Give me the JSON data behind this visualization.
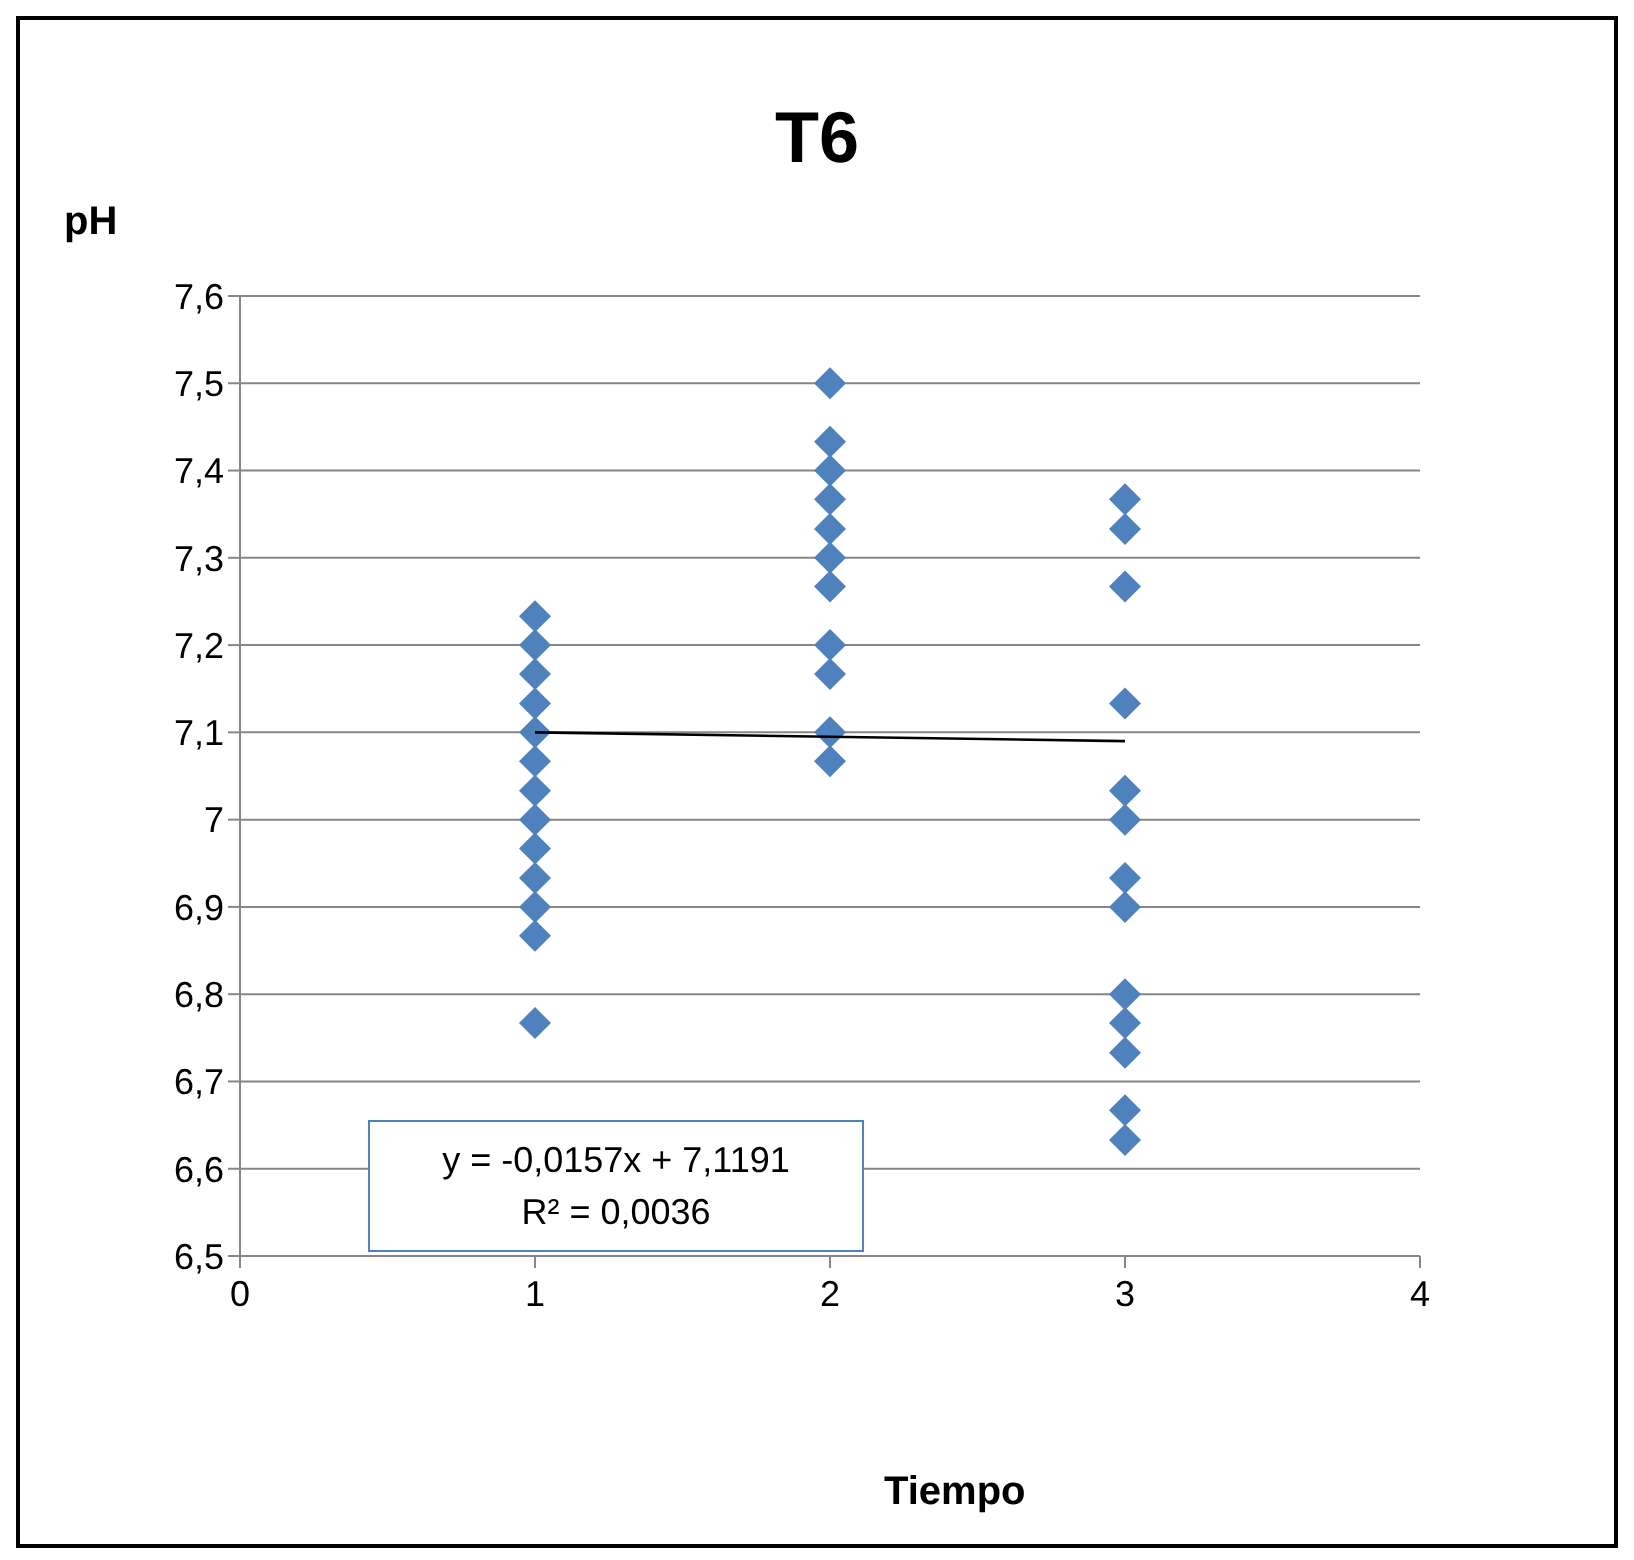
{
  "chart_data": {
    "type": "scatter",
    "title": "T6",
    "xlabel": "Tiempo",
    "ylabel": "pH",
    "xlim": [
      0,
      4
    ],
    "xticks": [
      0,
      1,
      2,
      3,
      4
    ],
    "ylim": [
      6.5,
      7.6
    ],
    "yticks": [
      {
        "value": 6.5,
        "label": "6,5"
      },
      {
        "value": 6.6,
        "label": "6,6"
      },
      {
        "value": 6.7,
        "label": "6,7"
      },
      {
        "value": 6.8,
        "label": "6,8"
      },
      {
        "value": 6.9,
        "label": "6,9"
      },
      {
        "value": 7.0,
        "label": "7"
      },
      {
        "value": 7.1,
        "label": "7,1"
      },
      {
        "value": 7.2,
        "label": "7,2"
      },
      {
        "value": 7.3,
        "label": "7,3"
      },
      {
        "value": 7.4,
        "label": "7,4"
      },
      {
        "value": 7.5,
        "label": "7,5"
      },
      {
        "value": 7.6,
        "label": "7,6"
      }
    ],
    "grid": "y",
    "legend": false,
    "marker": "diamond",
    "series": [
      {
        "color": "#4f81bd",
        "x": [
          1,
          1,
          1,
          1,
          1,
          1,
          1,
          1,
          1,
          1,
          1,
          1,
          1,
          2,
          2,
          2,
          2,
          2,
          2,
          2,
          2,
          2,
          2,
          2,
          3,
          3,
          3,
          3,
          3,
          3,
          3,
          3,
          3,
          3,
          3,
          3,
          3
        ],
        "values": [
          7.233,
          7.2,
          7.167,
          7.133,
          7.1,
          7.067,
          7.033,
          7.0,
          6.967,
          6.933,
          6.9,
          6.867,
          6.767,
          7.5,
          7.433,
          7.4,
          7.367,
          7.333,
          7.3,
          7.267,
          7.2,
          7.167,
          7.1,
          7.067,
          7.367,
          7.333,
          7.267,
          7.133,
          7.033,
          7.0,
          6.933,
          6.9,
          6.8,
          6.767,
          6.733,
          6.667,
          6.633
        ]
      },
      {
        "type": "line",
        "color": "#000000",
        "marker": "none",
        "x": [
          1,
          3
        ],
        "values": [
          7.1,
          7.09
        ]
      }
    ],
    "annotations": [
      "y = -0,0157x + 7,1191",
      "R² = 0,0036"
    ]
  }
}
